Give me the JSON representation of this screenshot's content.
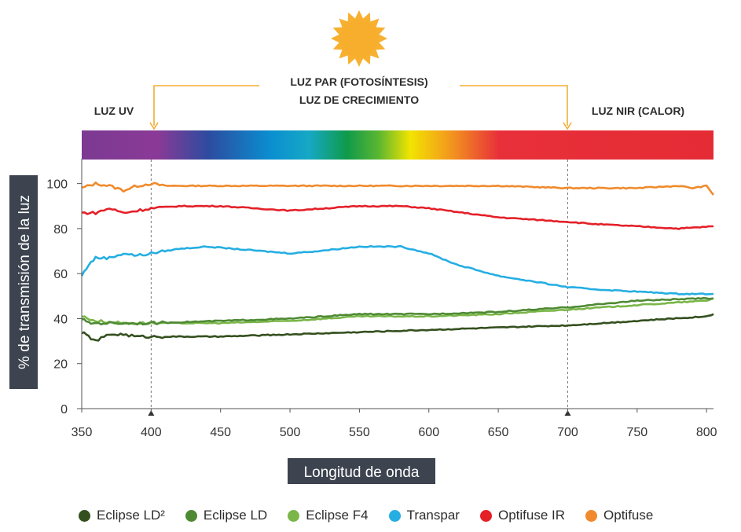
{
  "chart_data": {
    "type": "line",
    "xlabel": "Longitud de onda",
    "ylabel": "% de transmisión de la luz",
    "xlim": [
      350,
      805
    ],
    "ylim": [
      0,
      110
    ],
    "x_ticks": [
      350,
      400,
      450,
      500,
      550,
      600,
      650,
      700,
      750,
      800
    ],
    "y_ticks": [
      0,
      20,
      40,
      60,
      80,
      100
    ],
    "grid": false,
    "legend_position": "bottom",
    "annotations": {
      "sun": "sun-icon",
      "par_line1": "LUZ PAR (FOTOSÍNTESIS)",
      "par_line2": "LUZ DE CRECIMIENTO",
      "uv": "LUZ UV",
      "nir": "LUZ NIR (CALOR)",
      "markers_x": [
        400,
        700
      ]
    },
    "series": [
      {
        "name": "Optifuse",
        "color": "#f08a2c",
        "points": [
          [
            350,
            98
          ],
          [
            360,
            100
          ],
          [
            370,
            99
          ],
          [
            380,
            97
          ],
          [
            390,
            99
          ],
          [
            400,
            100
          ],
          [
            410,
            99
          ],
          [
            450,
            99
          ],
          [
            500,
            99
          ],
          [
            550,
            99
          ],
          [
            600,
            99
          ],
          [
            650,
            99
          ],
          [
            700,
            98
          ],
          [
            750,
            98
          ],
          [
            780,
            99
          ],
          [
            790,
            98
          ],
          [
            800,
            99
          ],
          [
            805,
            95
          ]
        ]
      },
      {
        "name": "Optifuse IR",
        "color": "#e42028",
        "points": [
          [
            350,
            87
          ],
          [
            360,
            87
          ],
          [
            370,
            89
          ],
          [
            380,
            87
          ],
          [
            390,
            88
          ],
          [
            400,
            89
          ],
          [
            420,
            90
          ],
          [
            450,
            90
          ],
          [
            500,
            88
          ],
          [
            550,
            90
          ],
          [
            580,
            90
          ],
          [
            600,
            89
          ],
          [
            650,
            85
          ],
          [
            700,
            83
          ],
          [
            720,
            82
          ],
          [
            750,
            81
          ],
          [
            780,
            80
          ],
          [
            805,
            81
          ]
        ]
      },
      {
        "name": "Transpar",
        "color": "#25aee2",
        "points": [
          [
            350,
            59
          ],
          [
            355,
            64
          ],
          [
            360,
            67
          ],
          [
            370,
            67
          ],
          [
            380,
            69
          ],
          [
            390,
            68
          ],
          [
            400,
            69
          ],
          [
            420,
            71
          ],
          [
            440,
            72
          ],
          [
            460,
            71
          ],
          [
            480,
            70
          ],
          [
            500,
            69
          ],
          [
            520,
            70
          ],
          [
            550,
            72
          ],
          [
            580,
            72
          ],
          [
            600,
            69
          ],
          [
            620,
            64
          ],
          [
            650,
            59
          ],
          [
            680,
            56
          ],
          [
            700,
            54
          ],
          [
            720,
            53
          ],
          [
            750,
            52
          ],
          [
            780,
            51
          ],
          [
            805,
            51
          ]
        ]
      },
      {
        "name": "Eclipse F4",
        "color": "#7ab648",
        "points": [
          [
            350,
            41
          ],
          [
            360,
            39
          ],
          [
            380,
            38
          ],
          [
            400,
            38
          ],
          [
            450,
            38
          ],
          [
            500,
            39
          ],
          [
            550,
            41
          ],
          [
            600,
            41
          ],
          [
            650,
            42
          ],
          [
            700,
            44
          ],
          [
            750,
            46
          ],
          [
            800,
            48
          ],
          [
            805,
            49
          ]
        ]
      },
      {
        "name": "Eclipse LD",
        "color": "#4e8a34",
        "points": [
          [
            350,
            40
          ],
          [
            355,
            38
          ],
          [
            360,
            38
          ],
          [
            380,
            38
          ],
          [
            400,
            38
          ],
          [
            450,
            39
          ],
          [
            500,
            40
          ],
          [
            550,
            42
          ],
          [
            600,
            42
          ],
          [
            650,
            43
          ],
          [
            700,
            45
          ],
          [
            750,
            48
          ],
          [
            800,
            49
          ],
          [
            805,
            49
          ]
        ]
      },
      {
        "name": "Eclipse LD²",
        "color": "#35501f",
        "points": [
          [
            350,
            34
          ],
          [
            355,
            32
          ],
          [
            360,
            30
          ],
          [
            370,
            33
          ],
          [
            380,
            33
          ],
          [
            390,
            32
          ],
          [
            400,
            32
          ],
          [
            450,
            32
          ],
          [
            500,
            33
          ],
          [
            550,
            34
          ],
          [
            600,
            35
          ],
          [
            650,
            36
          ],
          [
            700,
            37
          ],
          [
            750,
            39
          ],
          [
            800,
            41
          ],
          [
            805,
            42
          ]
        ]
      }
    ]
  }
}
